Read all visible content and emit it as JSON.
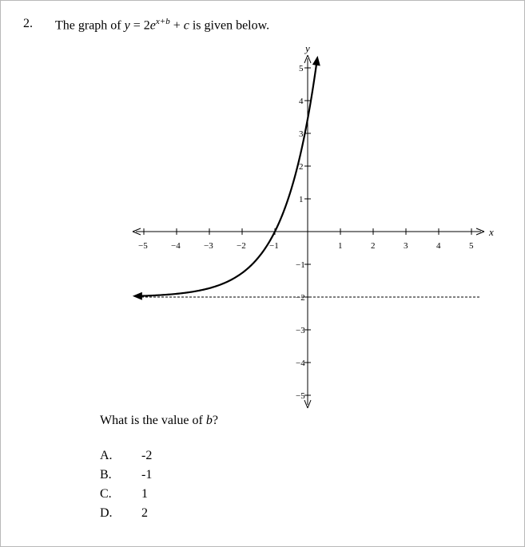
{
  "question": {
    "number": "2.",
    "text_prefix": "The graph of ",
    "eq_y": "y",
    "eq_eq": " = 2",
    "eq_e": "e",
    "eq_exp": "x+b",
    "eq_plus": " + ",
    "eq_c": "c",
    "text_suffix": " is given below."
  },
  "prompt": {
    "text": "What is the value of ",
    "var": "b",
    "end": "?"
  },
  "choices": [
    {
      "letter": "A.",
      "value": "-2"
    },
    {
      "letter": "B.",
      "value": "-1"
    },
    {
      "letter": "C.",
      "value": "1"
    },
    {
      "letter": "D.",
      "value": "2"
    }
  ],
  "chart_data": {
    "type": "line",
    "function": "y = 2e^(x+1) - 2",
    "xlabel": "x",
    "ylabel": "y",
    "xlim": [
      -5,
      5
    ],
    "ylim": [
      -5,
      5
    ],
    "x_ticks": [
      "-5",
      "-4",
      "-3",
      "-2",
      "-1",
      "1",
      "2",
      "3",
      "4",
      "5"
    ],
    "y_ticks": [
      "-5",
      "-4",
      "-3",
      "-2",
      "-1",
      "1",
      "2",
      "3",
      "4",
      "5"
    ],
    "asymptote_y": -2,
    "b": 1,
    "c": -2,
    "grid": false
  }
}
